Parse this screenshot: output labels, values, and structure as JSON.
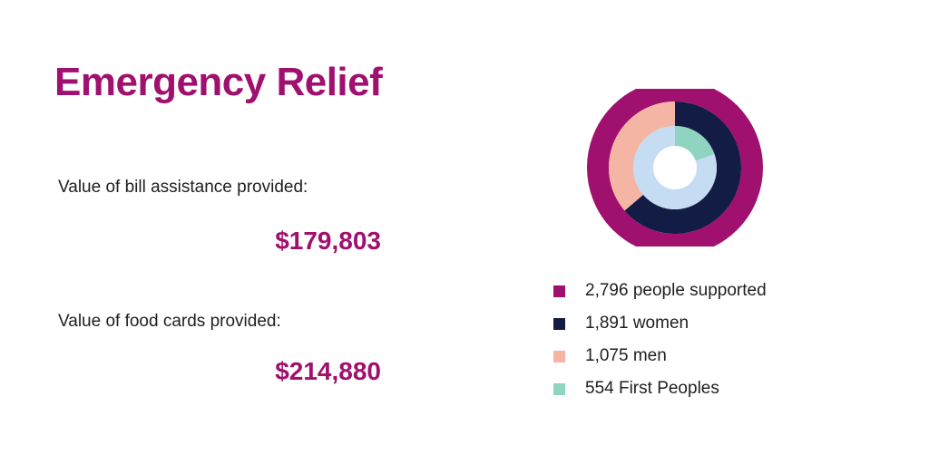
{
  "header": {
    "title": "Emergency Relief"
  },
  "stats": [
    {
      "label": "Value of bill assistance provided:",
      "value": "$179,803"
    },
    {
      "label": "Value of food cards provided:",
      "value": "$214,880"
    }
  ],
  "colors": {
    "accent": "#a0106e",
    "total": "#a0106e",
    "women": "#131c45",
    "men": "#f5b5a4",
    "first_peoples": "#8fd4c1",
    "inner_ring": "#c5dcf2"
  },
  "legend": [
    {
      "text": "2,796 people supported",
      "color": "#a0106e"
    },
    {
      "text": "1,891 women",
      "color": "#131c45"
    },
    {
      "text": "1,075 men",
      "color": "#f5b5a4"
    },
    {
      "text": "554 First Peoples",
      "color": "#8fd4c1"
    }
  ],
  "chart_data": {
    "type": "pie",
    "rings": [
      {
        "values": [
          2796
        ],
        "colors": [
          "#a0106e"
        ]
      },
      {
        "values": [
          1891,
          1075
        ],
        "colors": [
          "#131c45",
          "#f5b5a4"
        ]
      },
      {
        "values": [
          554,
          2242
        ],
        "colors": [
          "#8fd4c1",
          "#c5dcf2"
        ]
      }
    ],
    "legend_placement": "bottom"
  }
}
